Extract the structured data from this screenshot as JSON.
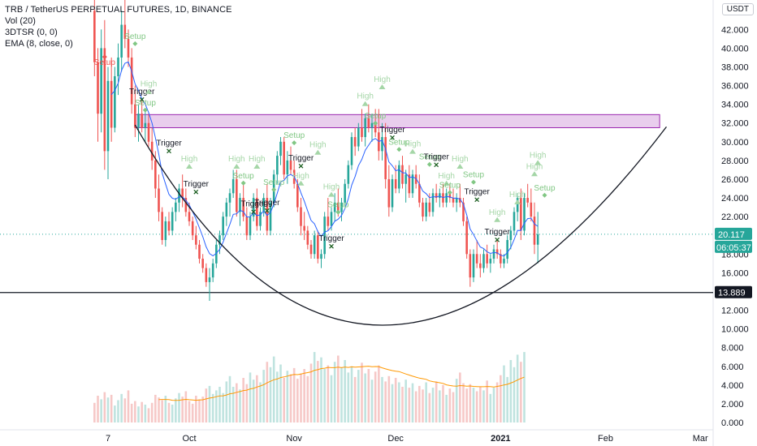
{
  "legend": {
    "title": "TRB / TetherUS PERPETUAL FUTURES, 1D, BINANCE",
    "vol": "Vol (20)",
    "dtsr": "3DTSR (0, 0)",
    "ema": "EMA (8, close, 0)"
  },
  "currency": "USDT",
  "colors": {
    "up": "#26a69a",
    "down": "#ef5350",
    "vol_up": "#bfe3df",
    "vol_down": "#f6c8c7",
    "ema": "#2962ff",
    "vol_ma": "#ff9800",
    "zone_fill": "#e1bee7",
    "zone_stroke": "#9c27b0",
    "marker_green": "#81c784",
    "marker_red": "#ef5350",
    "trigger": "#1b5e20"
  },
  "chart_data": {
    "type": "candlestick",
    "y_axis_ticks": [
      "42.000",
      "40.000",
      "38.000",
      "36.000",
      "34.000",
      "32.000",
      "30.000",
      "28.000",
      "26.000",
      "24.000",
      "22.000",
      "20.000",
      "18.000",
      "16.000",
      "14.000",
      "12.000",
      "10.000",
      "8.000",
      "6.000",
      "4.000",
      "2.000",
      "0.000"
    ],
    "x_axis_ticks": [
      "7",
      "Oct",
      "Nov",
      "Dec",
      "2021",
      "Feb",
      "Mar"
    ],
    "price_labels": {
      "last": "20.117",
      "countdown": "06:05:37",
      "line": "13.889"
    },
    "horizontal_line": 13.889,
    "resistance_zone": {
      "top": 32.9,
      "bottom": 31.5,
      "from": "2020-09-15",
      "to": "2021-02-17"
    },
    "cup_curve": {
      "left": [
        "2020-09-15",
        31.8
      ],
      "bottom": [
        "2020-11-27",
        10.4
      ],
      "right": [
        "2021-02-19",
        31.6
      ]
    },
    "marker_labels": {
      "setup": "Setup",
      "trigger": "Trigger",
      "high": "High"
    },
    "markers": [
      {
        "type": "setup",
        "date": "2020-09-15",
        "price": 41.0
      },
      {
        "type": "setup",
        "date": "2020-09-18",
        "price": 33.9
      },
      {
        "type": "trigger",
        "date": "2020-09-17",
        "price": 34.5
      },
      {
        "type": "high",
        "date": "2020-09-19",
        "price": 35.9
      },
      {
        "type": "trigger",
        "date": "2020-09-25",
        "price": 29.0
      },
      {
        "type": "high",
        "date": "2020-10-01",
        "price": 27.9
      },
      {
        "type": "trigger",
        "date": "2020-10-03",
        "price": 24.6
      },
      {
        "type": "high",
        "date": "2020-10-15",
        "price": 27.9
      },
      {
        "type": "setup",
        "date": "2020-10-17",
        "price": 26.1
      },
      {
        "type": "high",
        "date": "2020-10-21",
        "price": 27.9
      },
      {
        "type": "trigger",
        "date": "2020-10-20",
        "price": 22.5
      },
      {
        "type": "trigger",
        "date": "2020-10-24",
        "price": 22.6
      },
      {
        "type": "setup",
        "date": "2020-10-26",
        "price": 25.4
      },
      {
        "type": "setup",
        "date": "2020-11-01",
        "price": 30.4
      },
      {
        "type": "trigger",
        "date": "2020-11-03",
        "price": 27.4
      },
      {
        "type": "high",
        "date": "2020-11-03",
        "price": 26.1
      },
      {
        "type": "high",
        "date": "2020-11-08",
        "price": 29.4
      },
      {
        "type": "high",
        "date": "2020-11-12",
        "price": 24.9
      },
      {
        "type": "setup",
        "date": "2020-11-14",
        "price": 23.0
      },
      {
        "type": "trigger",
        "date": "2020-11-12",
        "price": 18.8
      },
      {
        "type": "high",
        "date": "2020-11-22",
        "price": 34.6
      },
      {
        "type": "setup",
        "date": "2020-11-25",
        "price": 32.5
      },
      {
        "type": "high",
        "date": "2020-11-27",
        "price": 36.4
      },
      {
        "type": "trigger",
        "date": "2020-11-30",
        "price": 30.4
      },
      {
        "type": "setup",
        "date": "2020-12-02",
        "price": 29.7
      },
      {
        "type": "high",
        "date": "2020-12-06",
        "price": 29.5
      },
      {
        "type": "setup",
        "date": "2020-12-11",
        "price": 28.1
      },
      {
        "type": "trigger",
        "date": "2020-12-13",
        "price": 27.5
      },
      {
        "type": "high",
        "date": "2020-12-16",
        "price": 26.1
      },
      {
        "type": "setup",
        "date": "2020-12-17",
        "price": 25.1
      },
      {
        "type": "high",
        "date": "2020-12-20",
        "price": 27.9
      },
      {
        "type": "setup",
        "date": "2020-12-24",
        "price": 26.2
      },
      {
        "type": "trigger",
        "date": "2020-12-25",
        "price": 23.8
      },
      {
        "type": "high",
        "date": "2020-12-31",
        "price": 22.2
      },
      {
        "type": "high",
        "date": "2021-01-06",
        "price": 24.1
      },
      {
        "type": "trigger",
        "date": "2020-12-31",
        "price": 19.5
      },
      {
        "type": "high",
        "date": "2021-01-12",
        "price": 28.3
      },
      {
        "type": "setup",
        "date": "2021-01-14",
        "price": 24.8
      },
      {
        "type": "high",
        "date": "2021-01-11",
        "price": 27.1
      }
    ],
    "ohlc": [
      [
        "2020-09-03",
        44.0,
        46.5,
        37.0,
        38.5
      ],
      [
        "2020-09-04",
        38.5,
        40.0,
        30.0,
        33.0
      ],
      [
        "2020-09-05",
        33.0,
        42.0,
        31.0,
        40.0
      ],
      [
        "2020-09-06",
        40.0,
        43.0,
        27.0,
        29.0
      ],
      [
        "2020-09-07",
        29.0,
        38.0,
        26.0,
        36.5
      ],
      [
        "2020-09-08",
        36.5,
        39.0,
        30.0,
        31.5
      ],
      [
        "2020-09-09",
        31.5,
        38.0,
        31.0,
        37.0
      ],
      [
        "2020-09-10",
        37.0,
        40.5,
        35.0,
        39.0
      ],
      [
        "2020-09-11",
        39.0,
        44.0,
        37.5,
        42.5
      ],
      [
        "2020-09-12",
        42.5,
        46.5,
        40.0,
        41.0
      ],
      [
        "2020-09-13",
        41.0,
        42.0,
        38.0,
        39.0
      ],
      [
        "2020-09-14",
        39.0,
        40.0,
        33.0,
        34.0
      ],
      [
        "2020-09-15",
        34.0,
        36.0,
        30.5,
        31.5
      ],
      [
        "2020-09-16",
        31.5,
        34.0,
        30.0,
        33.0
      ],
      [
        "2020-09-17",
        33.0,
        34.5,
        31.0,
        31.5
      ],
      [
        "2020-09-18",
        31.5,
        33.5,
        30.0,
        32.0
      ],
      [
        "2020-09-19",
        32.0,
        33.0,
        29.5,
        30.0
      ],
      [
        "2020-09-20",
        30.0,
        31.5,
        27.0,
        28.0
      ],
      [
        "2020-09-21",
        28.0,
        29.0,
        24.0,
        25.0
      ],
      [
        "2020-09-22",
        25.0,
        26.5,
        21.5,
        22.5
      ],
      [
        "2020-09-23",
        22.5,
        23.0,
        19.0,
        19.5
      ],
      [
        "2020-09-24",
        19.5,
        22.0,
        18.8,
        21.5
      ],
      [
        "2020-09-25",
        21.5,
        22.5,
        20.0,
        20.5
      ],
      [
        "2020-09-26",
        20.5,
        23.0,
        20.0,
        22.5
      ],
      [
        "2020-09-27",
        22.5,
        24.0,
        21.5,
        23.5
      ],
      [
        "2020-09-28",
        23.5,
        25.5,
        22.5,
        25.0
      ],
      [
        "2020-09-29",
        25.0,
        26.5,
        23.0,
        24.0
      ],
      [
        "2020-09-30",
        24.0,
        25.0,
        22.0,
        22.5
      ],
      [
        "2020-10-01",
        22.5,
        23.5,
        21.0,
        21.5
      ],
      [
        "2020-10-02",
        21.5,
        22.0,
        19.5,
        20.0
      ],
      [
        "2020-10-03",
        20.0,
        21.0,
        18.5,
        19.0
      ],
      [
        "2020-10-04",
        19.0,
        19.5,
        17.0,
        17.5
      ],
      [
        "2020-10-05",
        17.5,
        18.0,
        16.0,
        16.5
      ],
      [
        "2020-10-06",
        16.5,
        17.0,
        14.5,
        15.0
      ],
      [
        "2020-10-07",
        15.0,
        16.5,
        13.0,
        15.5
      ],
      [
        "2020-10-08",
        15.5,
        17.5,
        15.0,
        17.0
      ],
      [
        "2020-10-09",
        17.0,
        19.5,
        16.5,
        19.0
      ],
      [
        "2020-10-10",
        19.0,
        20.5,
        18.0,
        20.0
      ],
      [
        "2020-10-11",
        20.0,
        22.5,
        19.5,
        22.0
      ],
      [
        "2020-10-12",
        22.0,
        24.0,
        21.0,
        23.5
      ],
      [
        "2020-10-13",
        23.5,
        25.0,
        22.0,
        24.5
      ],
      [
        "2020-10-14",
        24.5,
        27.0,
        24.0,
        26.0
      ],
      [
        "2020-10-15",
        26.0,
        27.0,
        22.0,
        22.5
      ],
      [
        "2020-10-16",
        22.5,
        24.5,
        21.0,
        24.0
      ],
      [
        "2020-10-17",
        24.0,
        25.5,
        21.5,
        22.0
      ],
      [
        "2020-10-18",
        22.0,
        23.0,
        19.5,
        20.0
      ],
      [
        "2020-10-19",
        20.0,
        22.5,
        19.5,
        22.0
      ],
      [
        "2020-10-20",
        22.0,
        24.5,
        21.5,
        24.0
      ],
      [
        "2020-10-21",
        24.0,
        25.0,
        20.5,
        21.0
      ],
      [
        "2020-10-22",
        21.0,
        23.0,
        20.5,
        22.5
      ],
      [
        "2020-10-23",
        22.5,
        24.5,
        22.0,
        24.0
      ],
      [
        "2020-10-24",
        24.0,
        25.5,
        20.0,
        20.5
      ],
      [
        "2020-10-25",
        20.5,
        24.0,
        20.0,
        23.5
      ],
      [
        "2020-10-26",
        23.5,
        27.0,
        23.0,
        26.5
      ],
      [
        "2020-10-27",
        26.5,
        29.0,
        25.5,
        28.5
      ],
      [
        "2020-10-28",
        28.5,
        30.5,
        27.5,
        30.0
      ],
      [
        "2020-10-29",
        30.0,
        30.5,
        26.0,
        26.5
      ],
      [
        "2020-10-30",
        26.5,
        29.0,
        25.5,
        28.0
      ],
      [
        "2020-10-31",
        28.0,
        29.5,
        26.5,
        27.0
      ],
      [
        "2020-11-01",
        27.0,
        28.0,
        25.0,
        25.5
      ],
      [
        "2020-11-02",
        25.5,
        26.0,
        22.5,
        23.0
      ],
      [
        "2020-11-03",
        23.0,
        24.0,
        20.0,
        21.0
      ],
      [
        "2020-11-04",
        21.0,
        22.5,
        19.5,
        20.5
      ],
      [
        "2020-11-05",
        20.5,
        21.0,
        18.5,
        19.0
      ],
      [
        "2020-11-06",
        19.0,
        19.5,
        17.5,
        18.0
      ],
      [
        "2020-11-07",
        18.0,
        20.5,
        17.5,
        20.0
      ],
      [
        "2020-11-08",
        20.0,
        20.5,
        17.0,
        17.5
      ],
      [
        "2020-11-09",
        17.5,
        18.5,
        16.5,
        18.0
      ],
      [
        "2020-11-10",
        18.0,
        22.5,
        17.5,
        22.0
      ],
      [
        "2020-11-11",
        22.0,
        24.0,
        20.5,
        21.0
      ],
      [
        "2020-11-12",
        21.0,
        23.0,
        20.5,
        22.5
      ],
      [
        "2020-11-13",
        22.5,
        24.5,
        21.5,
        23.5
      ],
      [
        "2020-11-14",
        23.5,
        25.0,
        22.0,
        22.5
      ],
      [
        "2020-11-15",
        22.5,
        24.0,
        21.5,
        23.5
      ],
      [
        "2020-11-16",
        23.5,
        26.0,
        23.0,
        25.5
      ],
      [
        "2020-11-17",
        25.5,
        28.0,
        25.0,
        27.5
      ],
      [
        "2020-11-18",
        27.5,
        31.0,
        27.0,
        30.5
      ],
      [
        "2020-11-19",
        30.5,
        31.5,
        28.5,
        29.5
      ],
      [
        "2020-11-20",
        29.5,
        32.0,
        29.0,
        31.5
      ],
      [
        "2020-11-21",
        31.5,
        33.5,
        30.0,
        30.5
      ],
      [
        "2020-11-22",
        30.5,
        33.0,
        29.5,
        32.5
      ],
      [
        "2020-11-23",
        32.5,
        34.0,
        31.0,
        31.5
      ],
      [
        "2020-11-24",
        31.5,
        33.0,
        30.0,
        32.0
      ],
      [
        "2020-11-25",
        32.0,
        33.5,
        30.5,
        31.0
      ],
      [
        "2020-11-26",
        31.0,
        33.5,
        28.0,
        29.0
      ],
      [
        "2020-11-27",
        29.0,
        32.0,
        28.0,
        30.5
      ],
      [
        "2020-11-28",
        30.5,
        32.0,
        25.0,
        26.0
      ],
      [
        "2020-11-29",
        26.0,
        27.5,
        22.0,
        23.0
      ],
      [
        "2020-11-30",
        23.0,
        26.5,
        22.5,
        26.0
      ],
      [
        "2020-12-01",
        26.0,
        27.5,
        24.5,
        25.0
      ],
      [
        "2020-12-02",
        25.0,
        28.0,
        24.5,
        27.5
      ],
      [
        "2020-12-03",
        27.5,
        28.5,
        25.0,
        25.5
      ],
      [
        "2020-12-04",
        25.5,
        27.0,
        23.5,
        26.5
      ],
      [
        "2020-12-05",
        26.5,
        27.5,
        24.0,
        24.5
      ],
      [
        "2020-12-06",
        24.5,
        27.0,
        24.0,
        26.5
      ],
      [
        "2020-12-07",
        26.5,
        27.5,
        25.0,
        25.5
      ],
      [
        "2020-12-08",
        25.5,
        26.5,
        23.0,
        23.5
      ],
      [
        "2020-12-09",
        23.5,
        24.0,
        21.5,
        22.0
      ],
      [
        "2020-12-10",
        22.0,
        24.0,
        21.5,
        23.5
      ],
      [
        "2020-12-11",
        23.5,
        24.5,
        22.0,
        22.5
      ],
      [
        "2020-12-12",
        22.5,
        25.0,
        22.0,
        24.5
      ],
      [
        "2020-12-13",
        24.5,
        25.5,
        23.5,
        24.0
      ],
      [
        "2020-12-14",
        24.0,
        25.0,
        23.0,
        24.5
      ],
      [
        "2020-12-15",
        24.5,
        25.5,
        23.0,
        23.5
      ],
      [
        "2020-12-16",
        23.5,
        25.0,
        23.0,
        24.5
      ],
      [
        "2020-12-17",
        24.5,
        25.5,
        23.5,
        24.0
      ],
      [
        "2020-12-18",
        24.0,
        25.0,
        23.0,
        23.5
      ],
      [
        "2020-12-19",
        23.5,
        24.5,
        22.5,
        24.0
      ],
      [
        "2020-12-20",
        24.0,
        25.5,
        23.0,
        23.5
      ],
      [
        "2020-12-21",
        23.5,
        24.0,
        21.0,
        21.5
      ],
      [
        "2020-12-22",
        21.5,
        22.0,
        17.5,
        18.0
      ],
      [
        "2020-12-23",
        18.0,
        18.5,
        14.5,
        15.5
      ],
      [
        "2020-12-24",
        15.5,
        18.5,
        15.0,
        18.0
      ],
      [
        "2020-12-25",
        18.0,
        19.5,
        16.5,
        17.0
      ],
      [
        "2020-12-26",
        17.0,
        18.0,
        15.5,
        16.5
      ],
      [
        "2020-12-27",
        16.5,
        18.5,
        16.0,
        18.0
      ],
      [
        "2020-12-28",
        18.0,
        19.0,
        16.5,
        17.0
      ],
      [
        "2020-12-29",
        17.0,
        18.0,
        16.0,
        17.5
      ],
      [
        "2020-12-30",
        17.5,
        19.0,
        17.0,
        18.5
      ],
      [
        "2020-12-31",
        18.5,
        19.5,
        17.5,
        18.0
      ],
      [
        "2021-01-01",
        18.0,
        18.5,
        16.5,
        17.0
      ],
      [
        "2021-01-02",
        17.0,
        18.0,
        16.5,
        17.5
      ],
      [
        "2021-01-03",
        17.5,
        20.0,
        17.0,
        19.5
      ],
      [
        "2021-01-04",
        19.5,
        21.0,
        18.5,
        20.5
      ],
      [
        "2021-01-05",
        20.5,
        23.0,
        20.0,
        22.5
      ],
      [
        "2021-01-06",
        22.5,
        24.5,
        21.5,
        24.0
      ],
      [
        "2021-01-07",
        24.0,
        25.0,
        19.5,
        20.5
      ],
      [
        "2021-01-08",
        20.5,
        24.5,
        20.0,
        24.0
      ],
      [
        "2021-01-09",
        24.0,
        25.5,
        23.0,
        23.5
      ],
      [
        "2021-01-10",
        23.5,
        25.0,
        21.5,
        22.0
      ],
      [
        "2021-01-11",
        22.0,
        23.5,
        18.0,
        19.0
      ],
      [
        "2021-01-12",
        19.0,
        22.5,
        17.0,
        20.117
      ]
    ],
    "volume": [
      2.2,
      3.0,
      2.6,
      3.4,
      2.8,
      3.1,
      1.9,
      2.5,
      3.2,
      2.7,
      3.6,
      2.1,
      2.4,
      1.8,
      2.3,
      2.0,
      1.6,
      2.2,
      3.1,
      2.8,
      2.5,
      3.0,
      2.2,
      2.0,
      2.7,
      3.3,
      2.9,
      3.5,
      2.4,
      2.1,
      3.0,
      2.6,
      2.9,
      3.8,
      4.1,
      3.2,
      3.6,
      4.0,
      3.3,
      4.6,
      5.2,
      4.0,
      4.4,
      3.7,
      5.0,
      4.3,
      5.6,
      4.8,
      5.3,
      4.5,
      5.9,
      6.8,
      6.2,
      7.4,
      5.7,
      6.5,
      5.0,
      5.8,
      5.4,
      6.1,
      4.9,
      5.5,
      6.0,
      5.2,
      6.6,
      7.9,
      6.9,
      7.3,
      6.0,
      6.4,
      5.3,
      6.8,
      7.5,
      6.2,
      7.0,
      5.6,
      6.3,
      5.1,
      5.9,
      6.7,
      5.5,
      6.0,
      4.8,
      5.7,
      6.4,
      5.1,
      4.6,
      5.2,
      4.3,
      5.0,
      4.5,
      4.0,
      4.8,
      3.9,
      4.4,
      3.5,
      4.1,
      3.7,
      4.5,
      3.3,
      3.9,
      4.6,
      3.6,
      4.2,
      3.1,
      3.8,
      3.4,
      4.9,
      5.6,
      4.4,
      3.8,
      4.3,
      3.9,
      3.5,
      4.0,
      3.6,
      4.7,
      3.2,
      3.9,
      4.5,
      5.3,
      6.4,
      5.1,
      7.0,
      6.2,
      7.6,
      6.8,
      7.9
    ]
  }
}
